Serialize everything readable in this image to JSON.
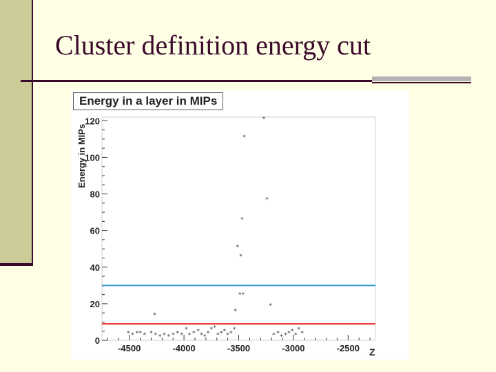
{
  "slide": {
    "title": "Cluster definition energy cut"
  },
  "chart_data": {
    "type": "scatter",
    "title": "Energy in a layer in MIPs",
    "ylabel": "Energy in MIPs",
    "xlabel": "Z",
    "xlim": [
      -4750,
      -2250
    ],
    "ylim": [
      0,
      122
    ],
    "xticks": [
      -4500,
      -4000,
      -3500,
      -3000,
      -2500
    ],
    "yticks": [
      0,
      20,
      40,
      60,
      80,
      100,
      120
    ],
    "grid": false,
    "hlines": [
      {
        "y": 30,
        "color": "#3399cc"
      },
      {
        "y": 9,
        "color": "#ee2222"
      }
    ],
    "points": [
      [
        -3270,
        121
      ],
      [
        -3450,
        111
      ],
      [
        -3240,
        77
      ],
      [
        -3470,
        66
      ],
      [
        -3510,
        51
      ],
      [
        -3480,
        46
      ],
      [
        -3490,
        25
      ],
      [
        -3460,
        25
      ],
      [
        -3530,
        16
      ],
      [
        -3210,
        19
      ],
      [
        -4270,
        14
      ],
      [
        -4510,
        4
      ],
      [
        -4470,
        3
      ],
      [
        -4430,
        4
      ],
      [
        -4400,
        4
      ],
      [
        -4360,
        3
      ],
      [
        -4300,
        4
      ],
      [
        -4260,
        3
      ],
      [
        -4220,
        2
      ],
      [
        -4180,
        3
      ],
      [
        -4140,
        2
      ],
      [
        -4100,
        3
      ],
      [
        -4060,
        4
      ],
      [
        -4020,
        3
      ],
      [
        -3980,
        6
      ],
      [
        -3950,
        3
      ],
      [
        -3910,
        4
      ],
      [
        -3870,
        5
      ],
      [
        -3840,
        3
      ],
      [
        -3810,
        2
      ],
      [
        -3780,
        4
      ],
      [
        -3750,
        6
      ],
      [
        -3720,
        7
      ],
      [
        -3690,
        3
      ],
      [
        -3660,
        4
      ],
      [
        -3630,
        5
      ],
      [
        -3600,
        3
      ],
      [
        -3570,
        4
      ],
      [
        -3540,
        6
      ],
      [
        -3180,
        3
      ],
      [
        -3140,
        4
      ],
      [
        -3110,
        2
      ],
      [
        -3070,
        3
      ],
      [
        -3040,
        4
      ],
      [
        -3010,
        5
      ],
      [
        -2980,
        3
      ],
      [
        -2950,
        6
      ],
      [
        -2920,
        4
      ]
    ]
  }
}
